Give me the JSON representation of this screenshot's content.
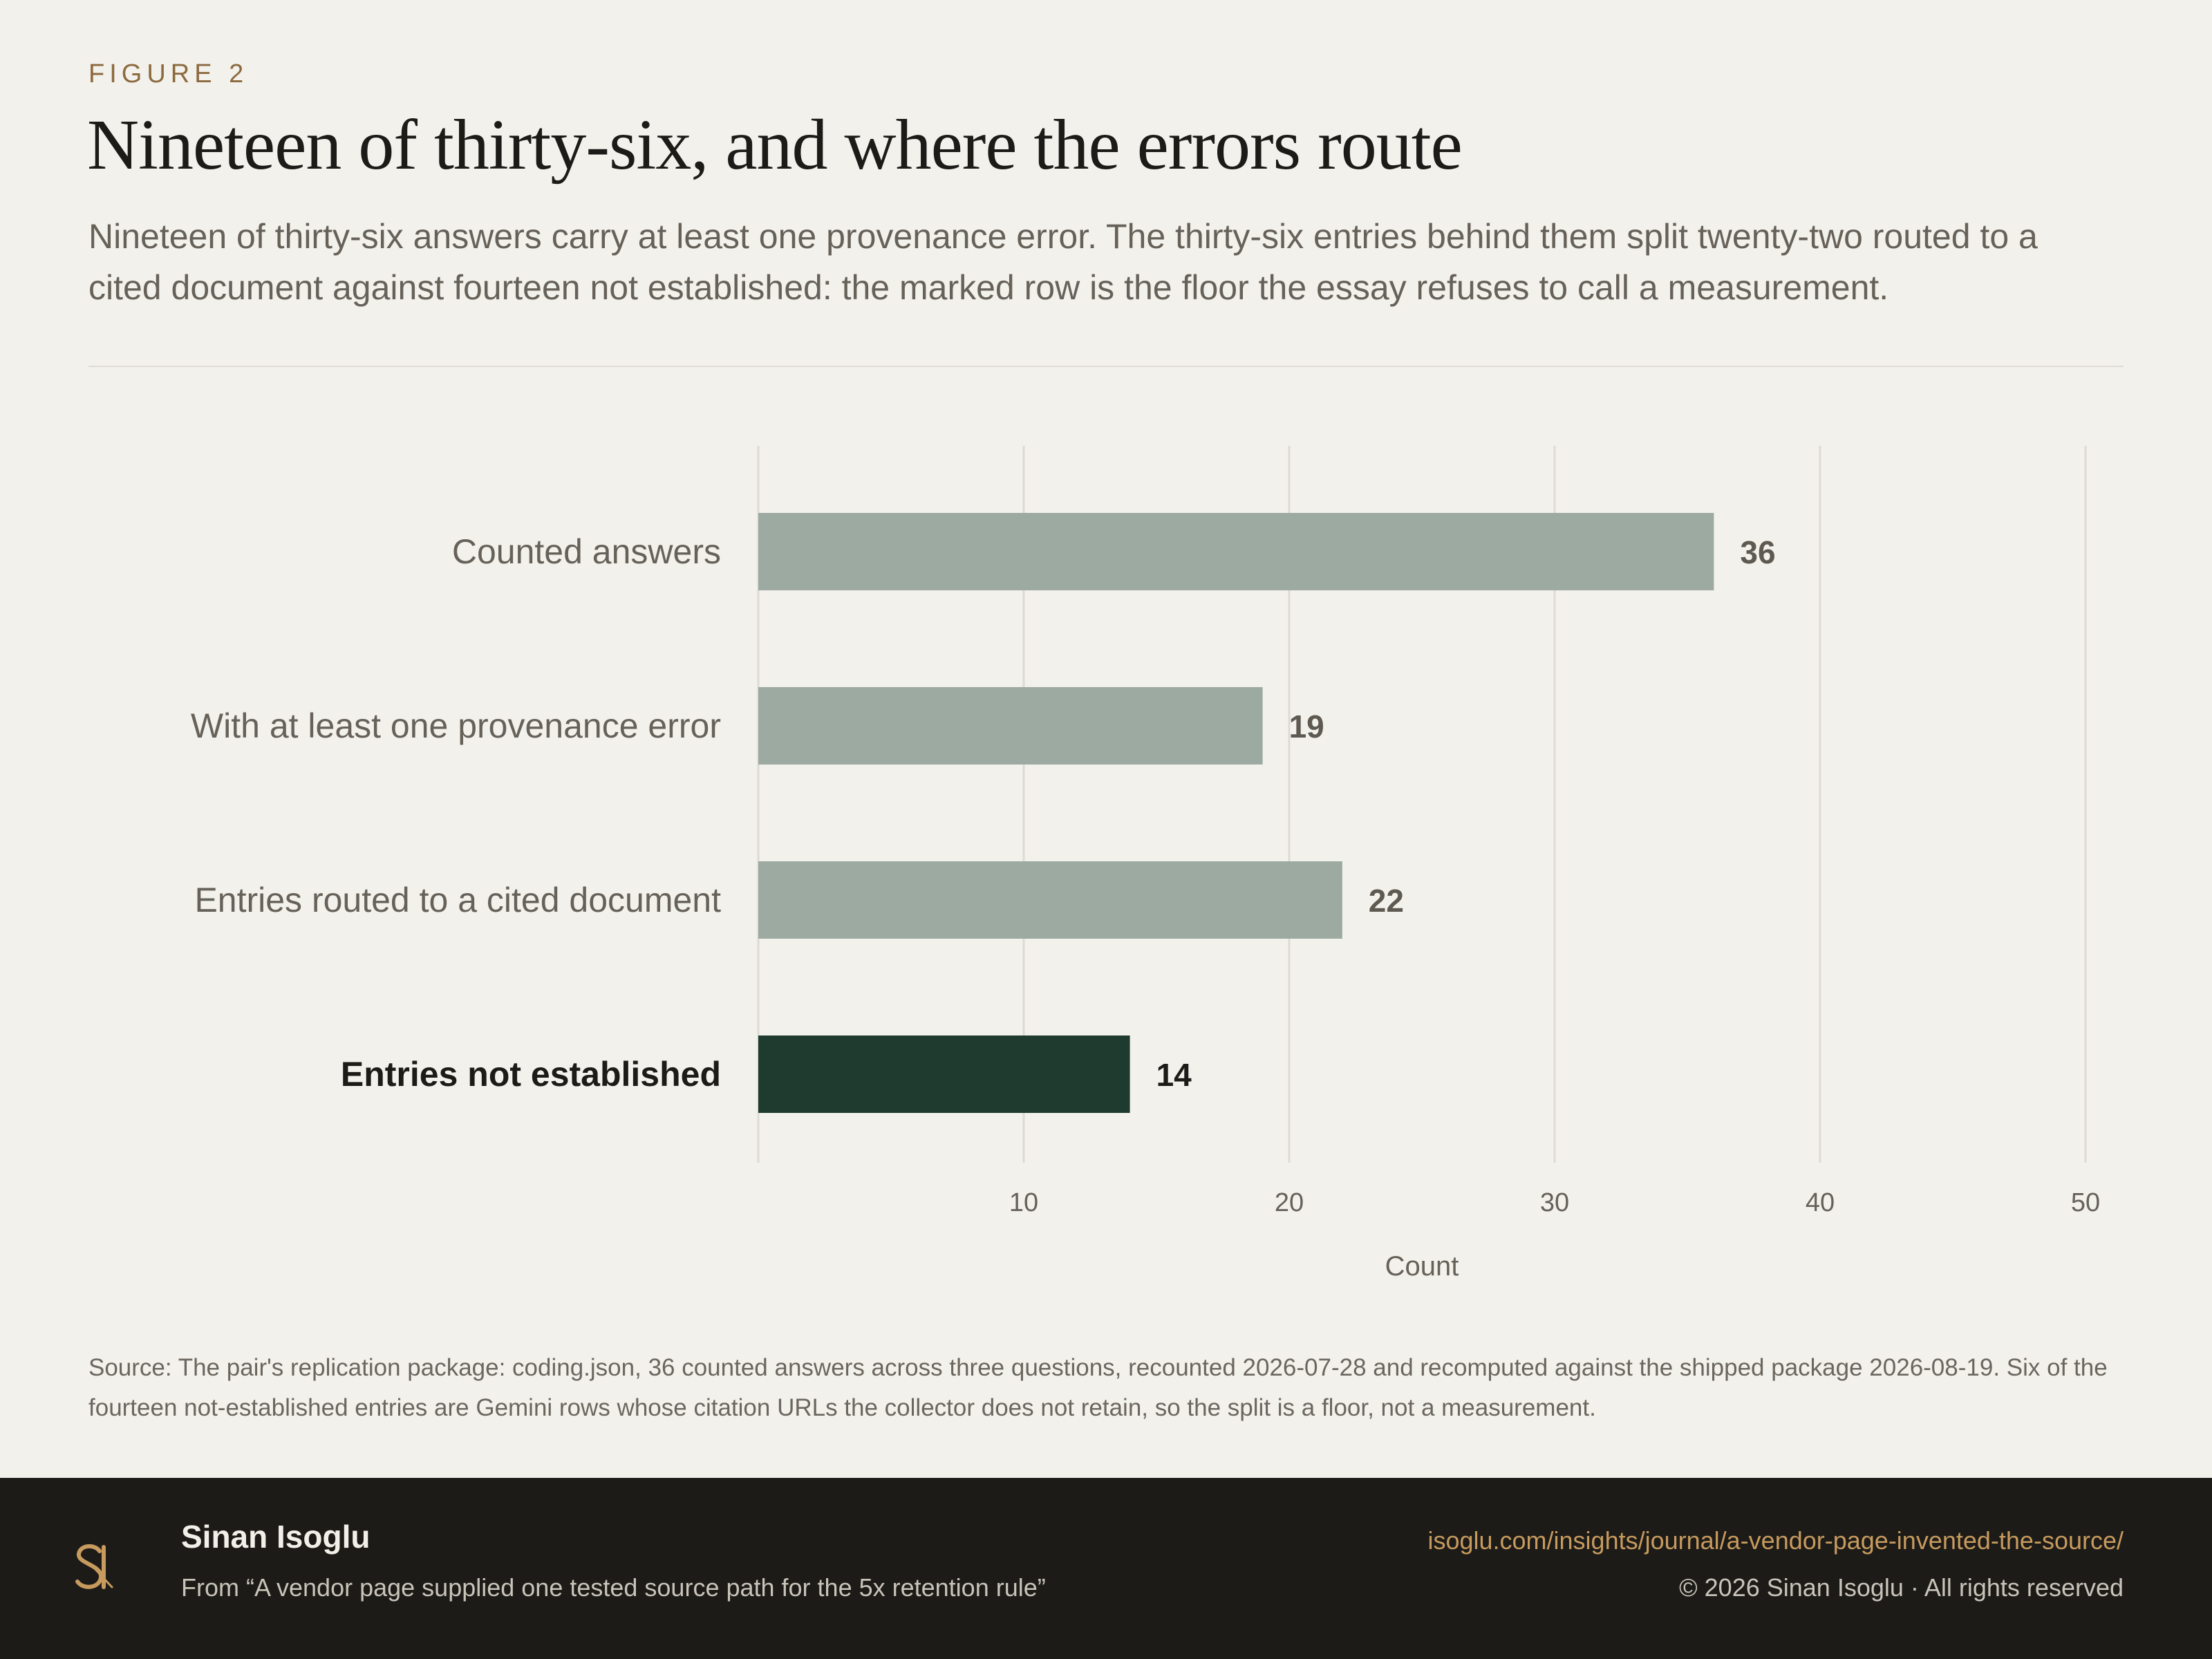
{
  "figure_label": "FIGURE 2",
  "title": "Nineteen of thirty-six, and where the errors route",
  "subtitle": "Nineteen of thirty-six answers carry at least one provenance error. The thirty-six entries behind them split twenty-two routed to a cited document against fourteen not established: the marked row is the floor the essay refuses to call a measurement.",
  "source_note": "Source: The pair's replication package: coding.json, 36 counted answers across three questions, recounted 2026-07-28 and recomputed against the shipped package 2026-08-19. Six of the fourteen not-established entries are Gemini rows whose citation URLs the collector does not retain, so the split is a floor, not a measurement.",
  "chart_data": {
    "type": "bar",
    "orientation": "horizontal",
    "categories": [
      "Counted answers",
      "With at least one provenance error",
      "Entries routed to a cited document",
      "Entries not established"
    ],
    "values": [
      36,
      19,
      22,
      14
    ],
    "highlighted_category": "Entries not established",
    "xlabel": "Count",
    "ylabel": "",
    "xlim": [
      0,
      50
    ],
    "x_ticks": [
      10,
      20,
      30,
      40,
      50
    ],
    "grid": "vertical",
    "colors": {
      "bar": "#9daaa1",
      "highlight_bar": "#1f3a2f",
      "label": "#66625a",
      "highlight_label": "#1c1b18",
      "grid": "#dedbd3"
    }
  },
  "footer": {
    "author": "Sinan Isoglu",
    "from": "From “A vendor page supplied one tested source path for the 5x retention rule”",
    "url": "isoglu.com/insights/journal/a-vendor-page-invented-the-source/",
    "copyright": "© 2026 Sinan Isoglu · All rights reserved",
    "logo_icon": "si-monogram-icon",
    "accent_color": "#c79a5e"
  }
}
